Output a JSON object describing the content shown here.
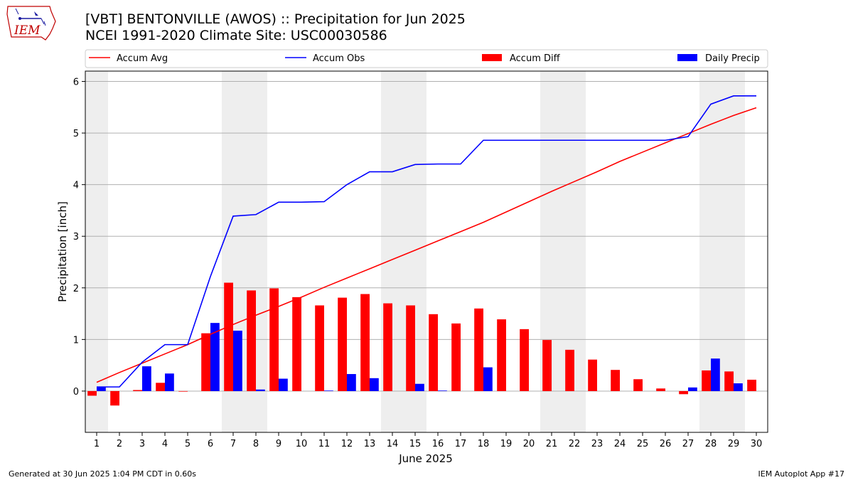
{
  "header": {
    "title": "[VBT] BENTONVILLE (AWOS) :: Precipitation for Jun 2025",
    "subtitle": "NCEI 1991-2020 Climate Site: USC00030586"
  },
  "logo": {
    "text": "IEM",
    "icon": "iem-iowa-logo"
  },
  "footer": {
    "left": "Generated at 30 Jun 2025 1:04 PM CDT in 0.60s",
    "right": "IEM Autoplot App #17"
  },
  "colors": {
    "accum_avg": "#ff0000",
    "accum_obs": "#0000ff",
    "accum_diff": "#ff0000",
    "daily_precip": "#0000ff",
    "weekend_shade": "#eeeeee",
    "grid": "#b0b0b0"
  },
  "chart_data": {
    "type": "bar",
    "xlabel": "June 2025",
    "ylabel": "Precipitation [inch]",
    "x": [
      1,
      2,
      3,
      4,
      5,
      6,
      7,
      8,
      9,
      10,
      11,
      12,
      13,
      14,
      15,
      16,
      17,
      18,
      19,
      20,
      21,
      22,
      23,
      24,
      25,
      26,
      27,
      28,
      29,
      30
    ],
    "x_tick_labels": [
      "1",
      "2",
      "3",
      "4",
      "5",
      "6",
      "7",
      "8",
      "9",
      "10",
      "11",
      "12",
      "13",
      "14",
      "15",
      "16",
      "17",
      "18",
      "19",
      "20",
      "21",
      "22",
      "23",
      "24",
      "25",
      "26",
      "27",
      "28",
      "29",
      "30"
    ],
    "xlim": [
      0.5,
      30.5
    ],
    "ylim": [
      -0.8,
      6.2
    ],
    "y_ticks": [
      0,
      1,
      2,
      3,
      4,
      5,
      6
    ],
    "y_tick_labels": [
      "0",
      "1",
      "2",
      "3",
      "4",
      "5",
      "6"
    ],
    "grid": "horizontal",
    "legend_position": "top",
    "weekend_shading_days": [
      1,
      7,
      8,
      14,
      15,
      21,
      22,
      28,
      29
    ],
    "series": [
      {
        "name": "Accum Avg",
        "kind": "line",
        "color": "#ff0000",
        "values": [
          0.17,
          0.36,
          0.54,
          0.72,
          0.9,
          1.1,
          1.29,
          1.47,
          1.64,
          1.82,
          2.01,
          2.19,
          2.37,
          2.55,
          2.73,
          2.91,
          3.09,
          3.27,
          3.47,
          3.67,
          3.87,
          4.06,
          4.25,
          4.45,
          4.63,
          4.81,
          4.99,
          5.17,
          5.34,
          5.49
        ]
      },
      {
        "name": "Accum Obs",
        "kind": "line",
        "color": "#0000ff",
        "values": [
          0.08,
          0.08,
          0.56,
          0.9,
          0.9,
          2.22,
          3.39,
          3.42,
          3.66,
          3.66,
          3.67,
          4.0,
          4.25,
          4.25,
          4.39,
          4.4,
          4.4,
          4.86,
          4.86,
          4.86,
          4.86,
          4.86,
          4.86,
          4.86,
          4.86,
          4.86,
          4.93,
          5.56,
          5.72,
          5.72
        ]
      },
      {
        "name": "Accum Diff",
        "kind": "bar",
        "color": "#ff0000",
        "values": [
          -0.09,
          -0.28,
          0.02,
          0.16,
          -0.01,
          1.12,
          2.1,
          1.95,
          1.99,
          1.82,
          1.66,
          1.81,
          1.88,
          1.7,
          1.66,
          1.49,
          1.31,
          1.6,
          1.39,
          1.2,
          0.99,
          0.8,
          0.61,
          0.41,
          0.23,
          0.05,
          -0.06,
          0.4,
          0.38,
          0.22
        ]
      },
      {
        "name": "Daily Precip",
        "kind": "bar",
        "color": "#0000ff",
        "values": [
          0.08,
          0.0,
          0.48,
          0.34,
          0.0,
          1.32,
          1.17,
          0.03,
          0.24,
          0.0,
          0.01,
          0.33,
          0.25,
          0.0,
          0.14,
          0.01,
          0.0,
          0.46,
          0.0,
          0.0,
          0.0,
          0.0,
          0.0,
          0.0,
          0.0,
          0.0,
          0.07,
          0.63,
          0.15,
          0.0
        ]
      }
    ]
  }
}
